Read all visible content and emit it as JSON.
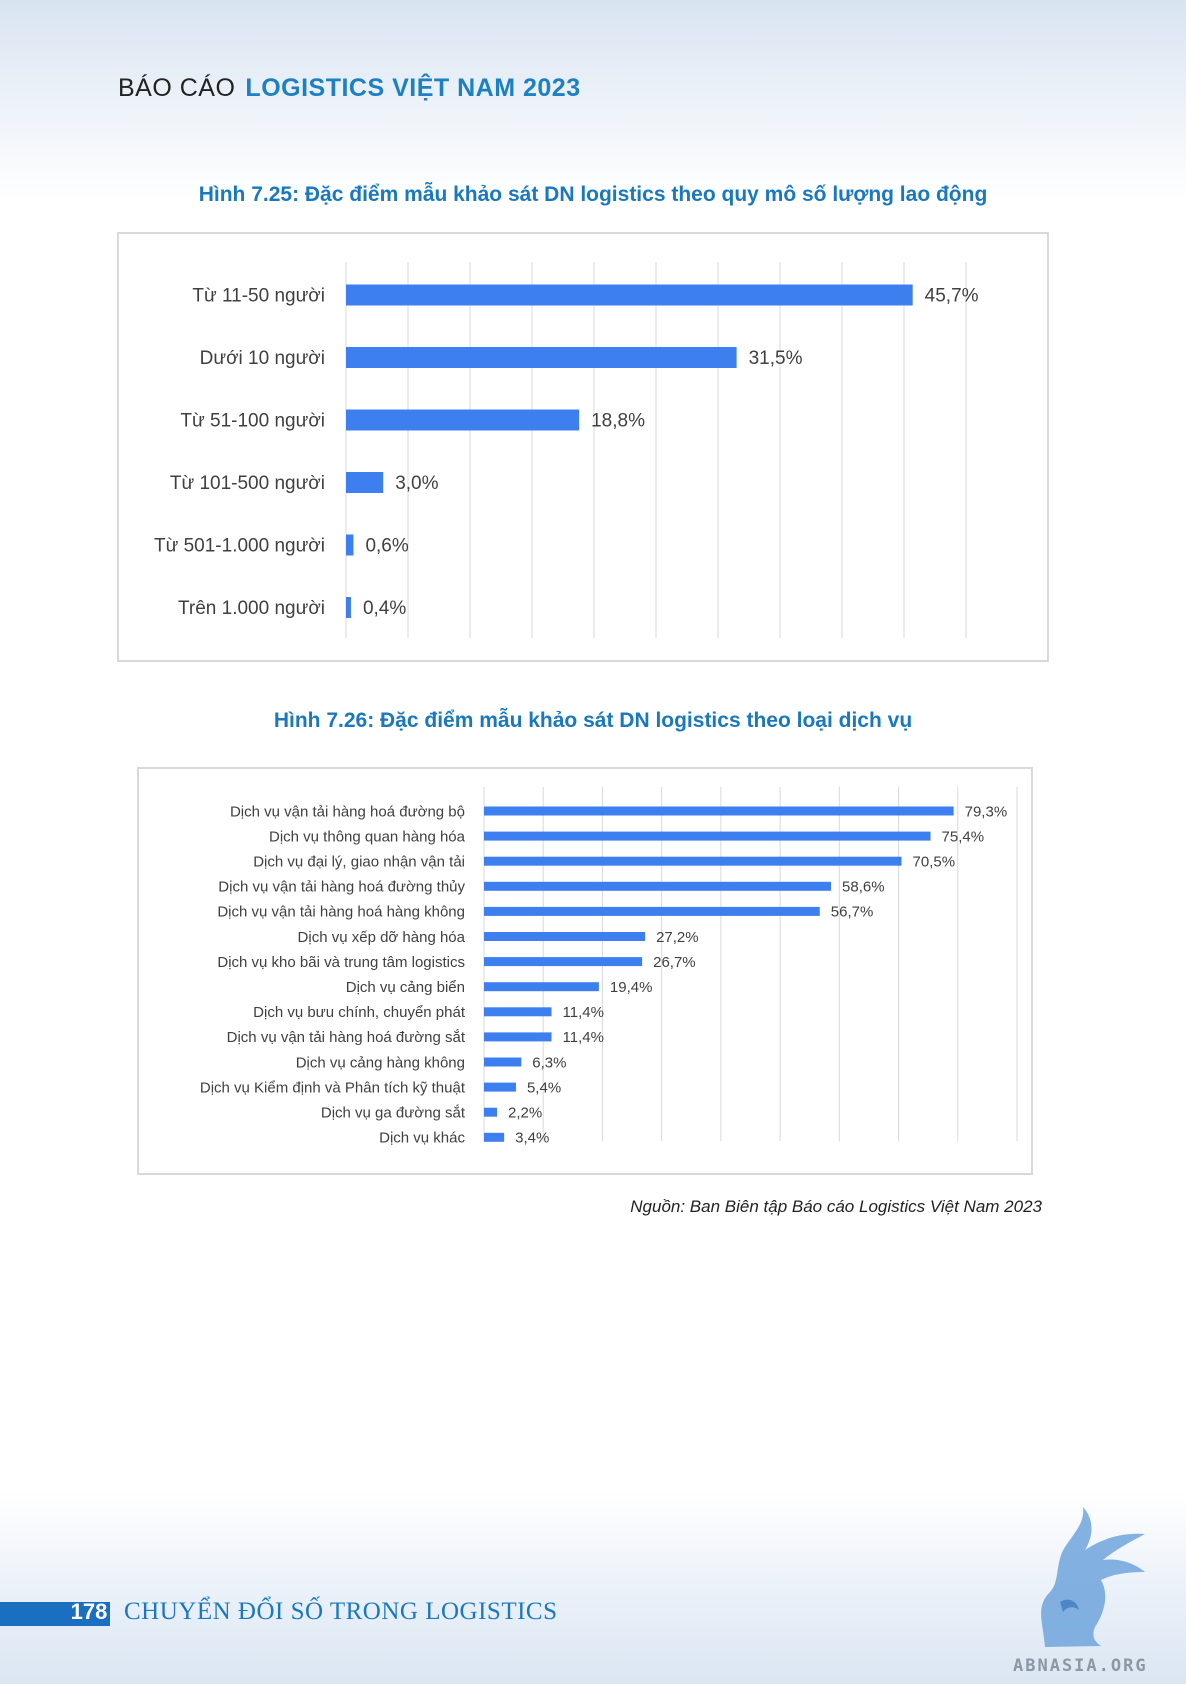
{
  "header": {
    "prefix": "BÁO CÁO",
    "title": "LOGISTICS VIỆT NAM 2023"
  },
  "figure1": {
    "title": "Hình 7.25: Đặc điểm mẫu khảo sát DN logistics theo quy mô số lượng lao động"
  },
  "figure2": {
    "title": "Hình 7.26: Đặc điểm mẫu khảo sát DN logistics theo loại dịch vụ"
  },
  "chart_data": [
    {
      "type": "bar",
      "orientation": "horizontal",
      "categories": [
        "Từ 11-50 người",
        "Dưới 10 người",
        "Từ 51-100 người",
        "Từ 101-500 người",
        "Từ 501-1.000 người",
        "Trên 1.000 người"
      ],
      "values": [
        45.7,
        31.5,
        18.8,
        3.0,
        0.6,
        0.4
      ],
      "labels": [
        "45,7%",
        "31,5%",
        "18,8%",
        "3,0%",
        "0,6%",
        "0,4%"
      ],
      "xlim": [
        0,
        50
      ],
      "grid": true,
      "color": "#3e7ff0"
    },
    {
      "type": "bar",
      "orientation": "horizontal",
      "categories": [
        "Dịch vụ vận tải hàng hoá đường bộ",
        "Dịch vụ thông quan hàng hóa",
        "Dịch vụ đại lý, giao nhận vận tải",
        "Dịch vụ vận tải hàng hoá đường thủy",
        "Dịch vụ vận tải hàng hoá hàng không",
        "Dịch vụ xếp dỡ hàng hóa",
        "Dịch vụ kho bãi và trung tâm logistics",
        "Dịch vụ cảng biển",
        "Dịch vụ bưu chính, chuyển phát",
        "Dịch vụ vận tải hàng hoá đường sắt",
        "Dịch vụ cảng hàng không",
        "Dịch vụ Kiểm định và Phân tích kỹ thuật",
        "Dịch vụ ga đường sắt",
        "Dịch vụ khác"
      ],
      "values": [
        79.3,
        75.4,
        70.5,
        58.6,
        56.7,
        27.2,
        26.7,
        19.4,
        11.4,
        11.4,
        6.3,
        5.4,
        2.2,
        3.4
      ],
      "labels": [
        "79,3%",
        "75,4%",
        "70,5%",
        "58,6%",
        "56,7%",
        "27,2%",
        "26,7%",
        "19,4%",
        "11,4%",
        "11,4%",
        "6,3%",
        "5,4%",
        "2,2%",
        "3,4%"
      ],
      "xlim": [
        0,
        90
      ],
      "grid": true,
      "color": "#3e7ff0"
    }
  ],
  "source": "Nguồn: Ban Biên tập Báo cáo Logistics Việt Nam 2023",
  "footer": {
    "page_number": "178",
    "title": "CHUYỂN ĐỔI SỐ TRONG LOGISTICS"
  },
  "watermark": {
    "text": "ABNASIA.ORG"
  }
}
